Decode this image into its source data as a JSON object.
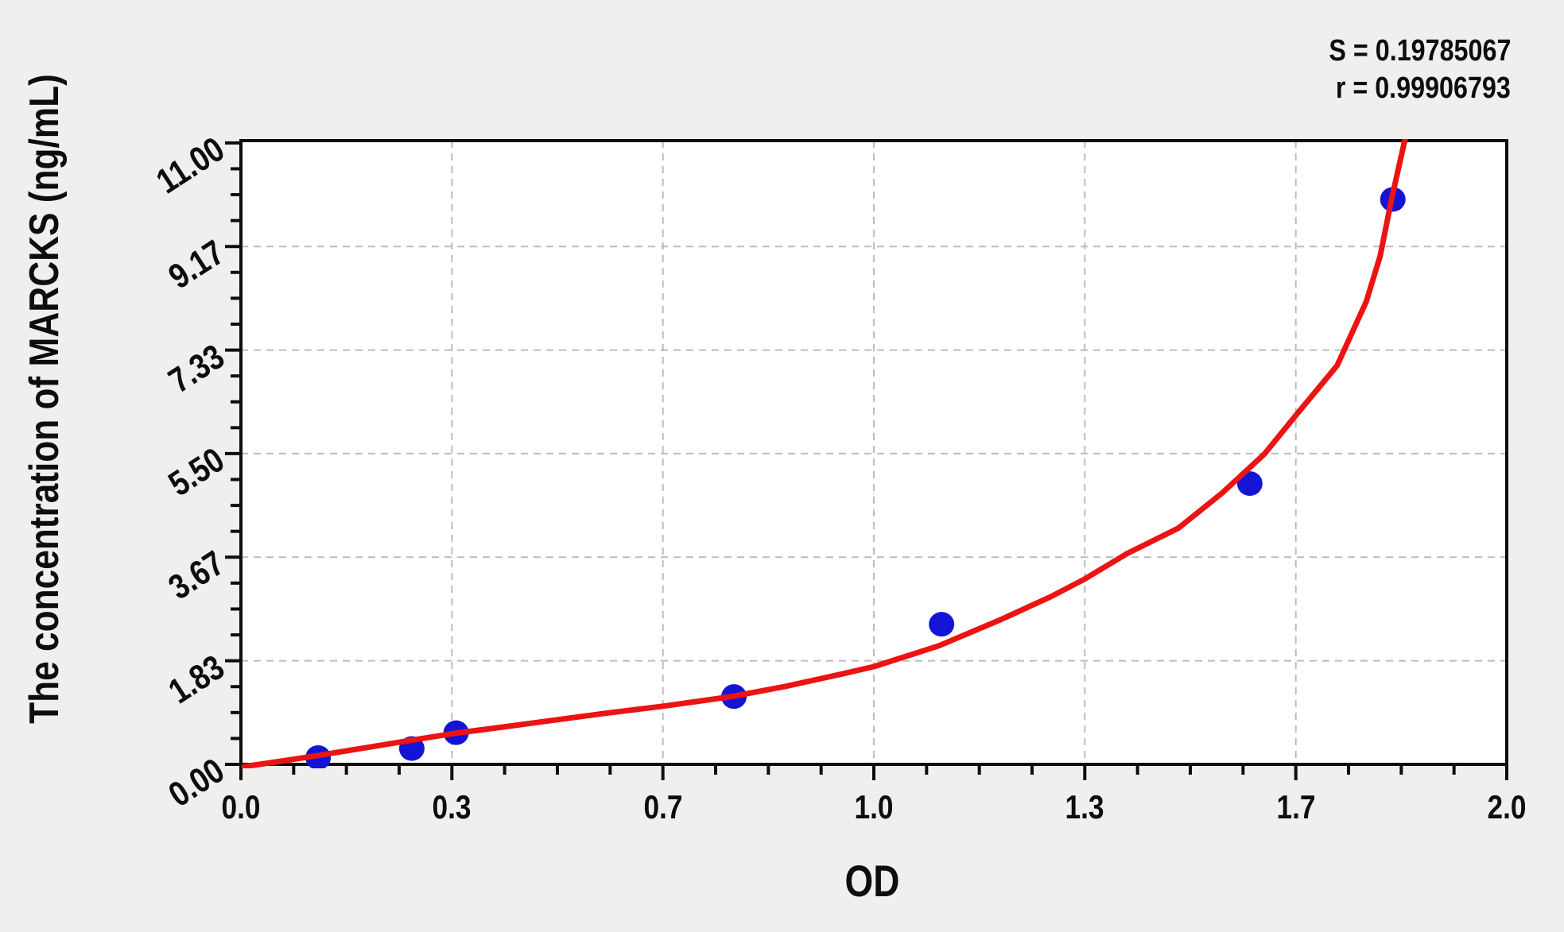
{
  "page": {
    "background": "#efefee",
    "plot_background": "#ffffff"
  },
  "chart_data": {
    "type": "scatter",
    "xlabel": "OD",
    "ylabel": "The concentration of MARCKS (ng/mL)",
    "xlim": [
      0,
      2.0
    ],
    "ylim": [
      0,
      11.04
    ],
    "grid": {
      "shown": true,
      "style": "dashed",
      "color": "#bcbcbc"
    },
    "x_major_ticks": [
      {
        "value": 0,
        "label": "0.0"
      },
      {
        "value": 0.3333,
        "label": "0.3"
      },
      {
        "value": 0.6667,
        "label": "0.7"
      },
      {
        "value": 1.0,
        "label": "1.0"
      },
      {
        "value": 1.3333,
        "label": "1.3"
      },
      {
        "value": 1.6667,
        "label": "1.7"
      },
      {
        "value": 2.0,
        "label": "2.0"
      }
    ],
    "y_major_ticks": [
      {
        "value": 0,
        "label": "0.00"
      },
      {
        "value": 1.8333,
        "label": "1.83"
      },
      {
        "value": 3.6667,
        "label": "3.67"
      },
      {
        "value": 5.5,
        "label": "5.50"
      },
      {
        "value": 7.3333,
        "label": "7.33"
      },
      {
        "value": 9.1667,
        "label": "9.17"
      },
      {
        "value": 11.0,
        "label": "11.00"
      }
    ],
    "minor_divisions": 4,
    "point_color": "#1414d4",
    "points": [
      {
        "od": 0.122,
        "conc": 0.12
      },
      {
        "od": 0.27,
        "conc": 0.28
      },
      {
        "od": 0.34,
        "conc": 0.56
      },
      {
        "od": 0.779,
        "conc": 1.2
      },
      {
        "od": 1.107,
        "conc": 2.48
      },
      {
        "od": 1.594,
        "conc": 4.97
      },
      {
        "od": 1.82,
        "conc": 10.0
      }
    ],
    "fit_curve": {
      "color": "#ec1313",
      "samples": [
        [
          0.005,
          -0.04
        ],
        [
          0.06,
          0.05
        ],
        [
          0.124,
          0.16
        ],
        [
          0.2,
          0.3
        ],
        [
          0.271,
          0.43
        ],
        [
          0.338,
          0.55
        ],
        [
          0.42,
          0.67
        ],
        [
          0.5,
          0.79
        ],
        [
          0.58,
          0.91
        ],
        [
          0.667,
          1.03
        ],
        [
          0.775,
          1.2
        ],
        [
          0.86,
          1.38
        ],
        [
          0.95,
          1.6
        ],
        [
          1.0,
          1.73
        ],
        [
          1.103,
          2.1
        ],
        [
          1.2,
          2.56
        ],
        [
          1.28,
          2.97
        ],
        [
          1.333,
          3.28
        ],
        [
          1.4,
          3.73
        ],
        [
          1.481,
          4.18
        ],
        [
          1.55,
          4.8
        ],
        [
          1.617,
          5.49
        ],
        [
          1.667,
          6.18
        ],
        [
          1.732,
          7.06
        ],
        [
          1.778,
          8.19
        ],
        [
          1.8,
          9.0
        ],
        [
          1.818,
          10.0
        ],
        [
          1.84,
          11.1
        ]
      ]
    },
    "annotations": [
      "S = 0.19785067",
      "r = 0.99906793"
    ]
  }
}
